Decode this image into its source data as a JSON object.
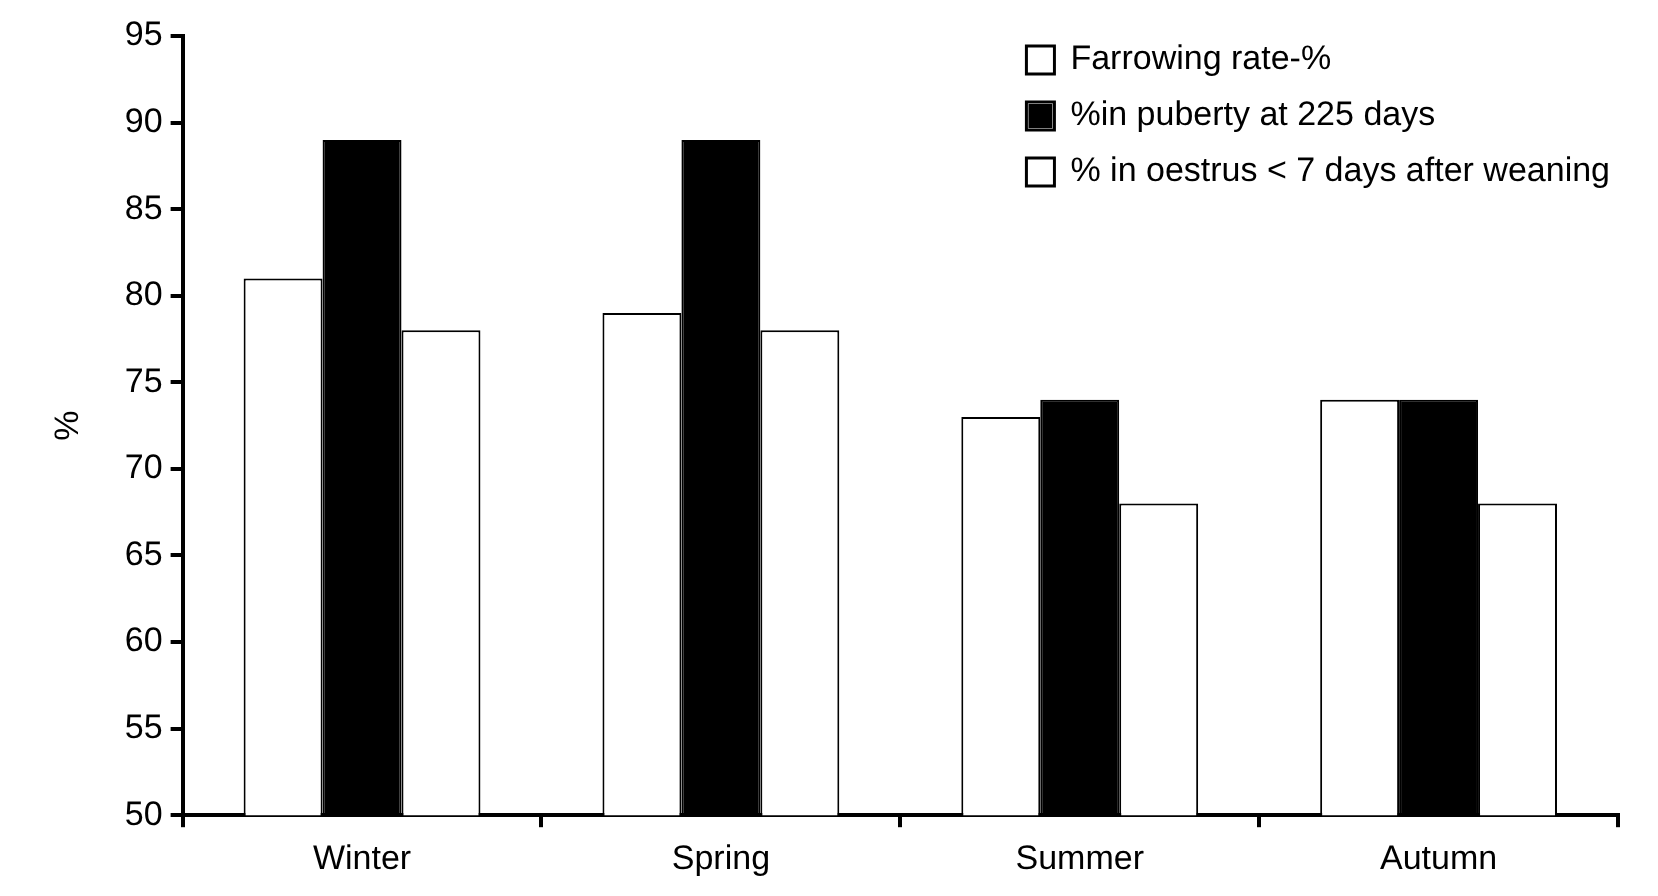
{
  "chart_data": {
    "type": "bar",
    "ylabel": "%",
    "categories": [
      "Winter",
      "Spring",
      "Summer",
      "Autumn"
    ],
    "series": [
      {
        "name": "Farrowing rate-%",
        "color": "#ffffff",
        "values": [
          81,
          79,
          73,
          74
        ]
      },
      {
        "name": "%in puberty at 225 days",
        "color": "#000000",
        "values": [
          89,
          89,
          74,
          74
        ]
      },
      {
        "name": "% in oestrus < 7 days after weaning",
        "color": "#ffffff",
        "values": [
          78,
          78,
          68,
          68
        ]
      }
    ],
    "ylim": [
      50,
      95
    ],
    "yticks": [
      50,
      55,
      60,
      65,
      70,
      75,
      80,
      85,
      90,
      95
    ],
    "grid": false,
    "legend": "top right"
  }
}
